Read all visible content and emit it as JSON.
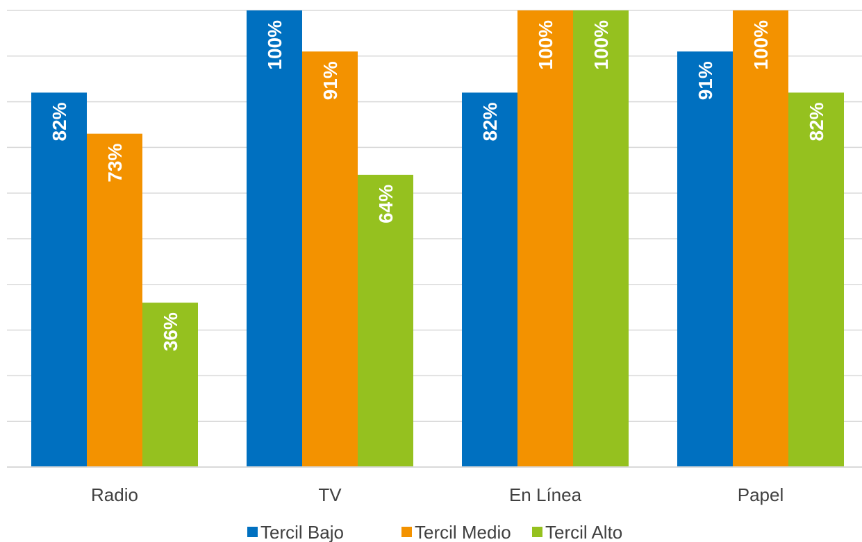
{
  "chart_data": {
    "type": "bar",
    "categories": [
      "Radio",
      "TV",
      "En Línea",
      "Papel"
    ],
    "series": [
      {
        "name": "Tercil Bajo",
        "color": "#0070C0",
        "values": [
          82,
          100,
          82,
          91
        ],
        "labels": [
          "82%",
          "100%",
          "82%",
          "91%"
        ]
      },
      {
        "name": "Tercil Medio",
        "color": "#F39200",
        "values": [
          73,
          91,
          100,
          100
        ],
        "labels": [
          "73%",
          "91%",
          "100%",
          "100%"
        ]
      },
      {
        "name": "Tercil Alto",
        "color": "#95C11F",
        "values": [
          36,
          64,
          100,
          82
        ],
        "labels": [
          "36%",
          "64%",
          "100%",
          "82%"
        ]
      }
    ],
    "ylim": [
      0,
      100
    ],
    "grid": true,
    "legend": "bottom-center",
    "title": "",
    "xlabel": "",
    "ylabel": ""
  }
}
